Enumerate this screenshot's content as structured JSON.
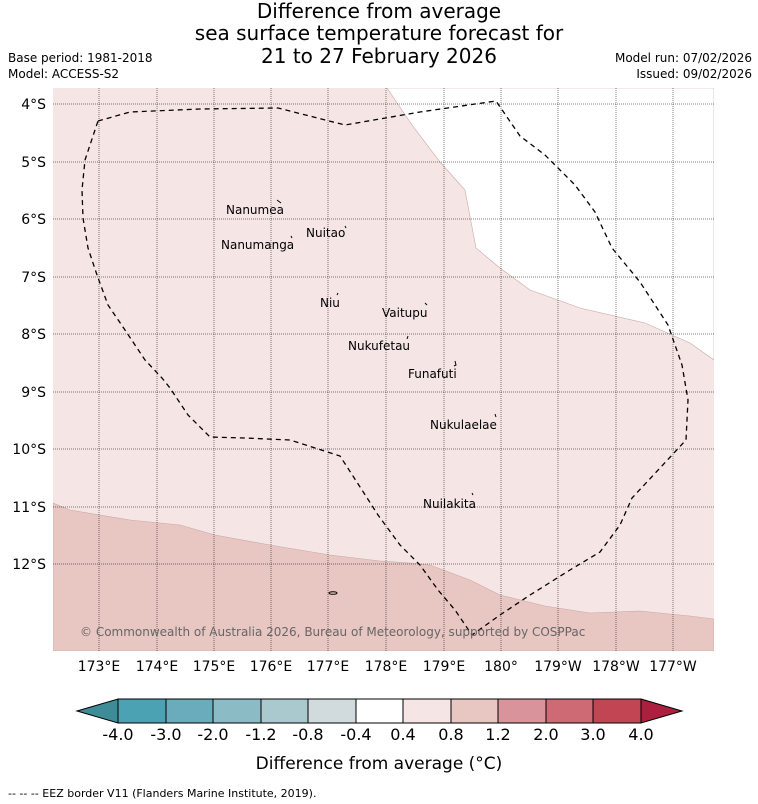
{
  "title_lines": [
    "Difference from average",
    "sea surface temperature forecast for",
    "21 to 27 February 2026"
  ],
  "base_period": "Base period: 1981-2018",
  "model": "Model: ACCESS-S2",
  "model_run": "Model run: 07/02/2026",
  "issued": "Issued: 09/02/2026",
  "lat_labels": [
    "4°S",
    "5°S",
    "6°S",
    "7°S",
    "8°S",
    "9°S",
    "10°S",
    "11°S",
    "12°S"
  ],
  "lon_labels": [
    "173°E",
    "174°E",
    "175°E",
    "176°E",
    "177°E",
    "178°E",
    "179°E",
    "180°",
    "179°W",
    "178°W",
    "177°W"
  ],
  "islands": [
    {
      "name": "Nanumea"
    },
    {
      "name": "Nuitao"
    },
    {
      "name": "Nanumanga"
    },
    {
      "name": "Niu"
    },
    {
      "name": "Vaitupu"
    },
    {
      "name": "Nukufetau"
    },
    {
      "name": "Funafuti"
    },
    {
      "name": "Nukulaelae"
    },
    {
      "name": "Nuilakita"
    }
  ],
  "copyright": "© Commonwealth of Australia 2026, Bureau of Meteorology, supported by COSPPac",
  "colorbar": {
    "ticks": [
      "-4.0",
      "-3.0",
      "-2.0",
      "-1.2",
      "-0.8",
      "-0.4",
      "0.4",
      "0.8",
      "1.2",
      "2.0",
      "3.0",
      "4.0"
    ],
    "colors": [
      "#3d8c98",
      "#4aa2b2",
      "#6aacbb",
      "#8bbcc6",
      "#a9c9ce",
      "#d1dbdd",
      "#ffffff",
      "#f5e6e5",
      "#e8c6c2",
      "#d8949a",
      "#cd6a74",
      "#c24554",
      "#ac1f3e"
    ],
    "label": "Difference from average (°C)"
  },
  "map_colors": {
    "class_0_4_to_0_8": "#f5e6e5",
    "class_0_8_to_1_2": "#e8c6c2",
    "neutral": "#ffffff"
  },
  "footer": "-- -- -- EEZ border V11 (Flanders Marine Institute, 2019)."
}
